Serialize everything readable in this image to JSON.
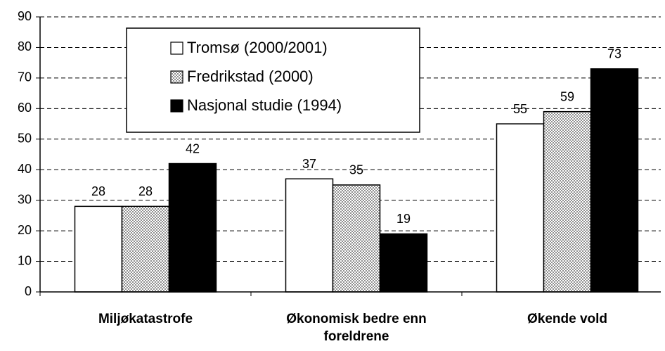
{
  "chart_data": {
    "type": "bar",
    "categories": [
      "Miljøkatastrofe",
      "Økonomisk bedre enn foreldrene",
      "Økende vold"
    ],
    "series": [
      {
        "name": "Tromsø (2000/2001)",
        "color": "#ffffff",
        "values": [
          28,
          37,
          55
        ]
      },
      {
        "name": "Fredrikstad (2000)",
        "color": "#909090",
        "pattern": "dotted",
        "values": [
          28,
          35,
          59
        ]
      },
      {
        "name": "Nasjonal studie (1994)",
        "color": "#000000",
        "values": [
          42,
          19,
          73
        ]
      }
    ],
    "ylim": [
      0,
      90
    ],
    "yticks": [
      0,
      10,
      20,
      30,
      40,
      50,
      60,
      70,
      80,
      90
    ],
    "grid": true,
    "legend": "top-left"
  }
}
